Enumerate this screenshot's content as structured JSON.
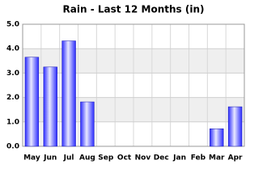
{
  "chart_data": {
    "type": "bar",
    "title": "Rain - Last 12 Months (in)",
    "categories": [
      "May",
      "Jun",
      "Jul",
      "Aug",
      "Sep",
      "Oct",
      "Nov",
      "Dec",
      "Jan",
      "Feb",
      "Mar",
      "Apr"
    ],
    "values": [
      3.65,
      3.25,
      4.32,
      1.82,
      0,
      0,
      0,
      0,
      0,
      0,
      0.72,
      1.62
    ],
    "color": "#2a2aff",
    "ylim": [
      0,
      5
    ],
    "yticks": [
      {
        "value": 0,
        "label": "0.0"
      },
      {
        "value": 1,
        "label": "1.0"
      },
      {
        "value": 2,
        "label": "2.0"
      },
      {
        "value": 3,
        "label": "3.0"
      },
      {
        "value": 4,
        "label": "4.0"
      },
      {
        "value": 5,
        "label": "5.0"
      }
    ],
    "grid": true
  }
}
